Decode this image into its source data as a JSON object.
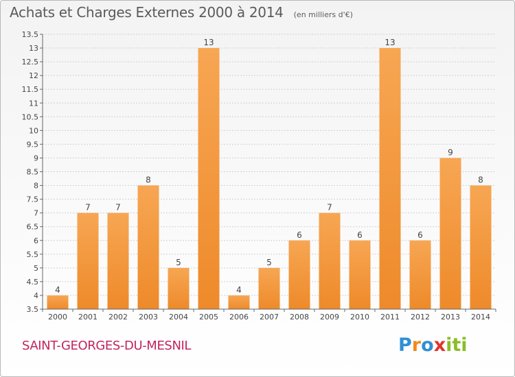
{
  "header": {
    "title": "Achats et Charges Externes 2000 à 2014",
    "unit": "(en milliers d'€)"
  },
  "footer": {
    "commune": "SAINT-GEORGES-DU-MESNIL",
    "brand": "Proxiti",
    "brand_colors": [
      "#2f8fd6",
      "#f08a1c",
      "#2f8fd6",
      "#e0342c",
      "#8bbd2a",
      "#8bbd2a",
      "#8bbd2a"
    ]
  },
  "chart_data": {
    "type": "bar",
    "title": "Achats et Charges Externes 2000 à 2014",
    "xlabel": "",
    "ylabel": "",
    "categories": [
      "2000",
      "2001",
      "2002",
      "2003",
      "2004",
      "2005",
      "2006",
      "2007",
      "2008",
      "2009",
      "2010",
      "2011",
      "2012",
      "2013",
      "2014"
    ],
    "values": [
      4,
      7,
      7,
      8,
      5,
      13,
      4,
      5,
      6,
      7,
      6,
      13,
      6,
      9,
      8
    ],
    "data_labels": [
      "4",
      "7",
      "7",
      "8",
      "5",
      "13",
      "4",
      "5",
      "6",
      "7",
      "6",
      "13",
      "6",
      "9",
      "8"
    ],
    "ylim": [
      3.5,
      13.5
    ],
    "yticks": [
      3.5,
      4,
      4.5,
      5,
      5.5,
      6,
      6.5,
      7,
      7.5,
      8,
      8.5,
      9,
      9.5,
      10,
      10.5,
      11,
      11.5,
      12,
      12.5,
      13,
      13.5
    ],
    "ytick_labels": [
      "3.5",
      "4",
      "4.5",
      "5",
      "5.5",
      "6",
      "6.5",
      "7",
      "7.5",
      "8",
      "8.5",
      "9",
      "9.5",
      "10",
      "10.5",
      "11",
      "11.5",
      "12",
      "12.5",
      "13",
      "13.5"
    ],
    "grid": true,
    "bar_color": "#ee8a2a",
    "bar_color_light": "#f7a653",
    "grid_color": "#d0d0d0",
    "legend": "none"
  }
}
